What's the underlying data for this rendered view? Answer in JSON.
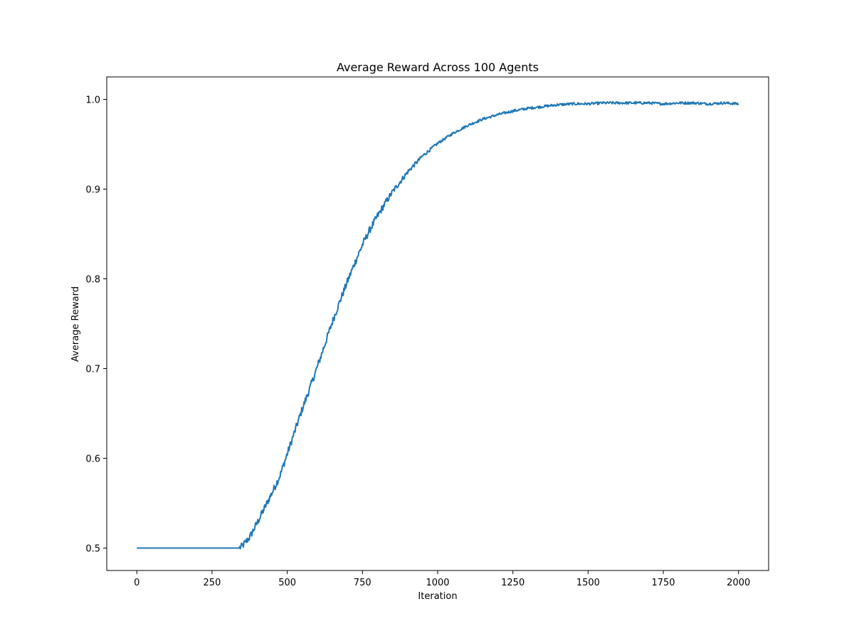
{
  "chart_data": {
    "type": "line",
    "title": "Average Reward Across 100 Agents",
    "xlabel": "Iteration",
    "ylabel": "Average Reward",
    "xlim": [
      -100,
      2100
    ],
    "ylim": [
      0.475,
      1.025
    ],
    "xticks": [
      0,
      250,
      500,
      750,
      1000,
      1250,
      1500,
      1750,
      2000
    ],
    "xtick_labels": [
      "0",
      "250",
      "500",
      "750",
      "1000",
      "1250",
      "1500",
      "1750",
      "2000"
    ],
    "yticks": [
      0.5,
      0.6,
      0.7,
      0.8,
      0.9,
      1.0
    ],
    "ytick_labels": [
      "0.5",
      "0.6",
      "0.7",
      "0.8",
      "0.9",
      "1.0"
    ],
    "grid": false,
    "legend": "none",
    "series": [
      {
        "name": "Average Reward",
        "color": "#1f77b4",
        "x": [
          0,
          100,
          200,
          300,
          340,
          350,
          375,
          400,
          425,
          450,
          475,
          500,
          525,
          550,
          575,
          600,
          625,
          650,
          675,
          700,
          725,
          750,
          775,
          800,
          825,
          850,
          875,
          900,
          925,
          950,
          975,
          1000,
          1050,
          1100,
          1150,
          1200,
          1250,
          1300,
          1350,
          1400,
          1450,
          1500,
          1550,
          1600,
          1650,
          1700,
          1750,
          1800,
          1850,
          1900,
          1950,
          2000
        ],
        "values": [
          0.5,
          0.5,
          0.5,
          0.5,
          0.5,
          0.502,
          0.512,
          0.528,
          0.545,
          0.562,
          0.58,
          0.605,
          0.63,
          0.655,
          0.678,
          0.702,
          0.727,
          0.752,
          0.775,
          0.797,
          0.818,
          0.838,
          0.855,
          0.87,
          0.884,
          0.897,
          0.908,
          0.919,
          0.928,
          0.937,
          0.944,
          0.951,
          0.962,
          0.971,
          0.978,
          0.983,
          0.987,
          0.99,
          0.992,
          0.994,
          0.995,
          0.995,
          0.996,
          0.996,
          0.996,
          0.996,
          0.995,
          0.996,
          0.996,
          0.995,
          0.996,
          0.995
        ],
        "noise_amplitude": 0.004
      }
    ]
  }
}
